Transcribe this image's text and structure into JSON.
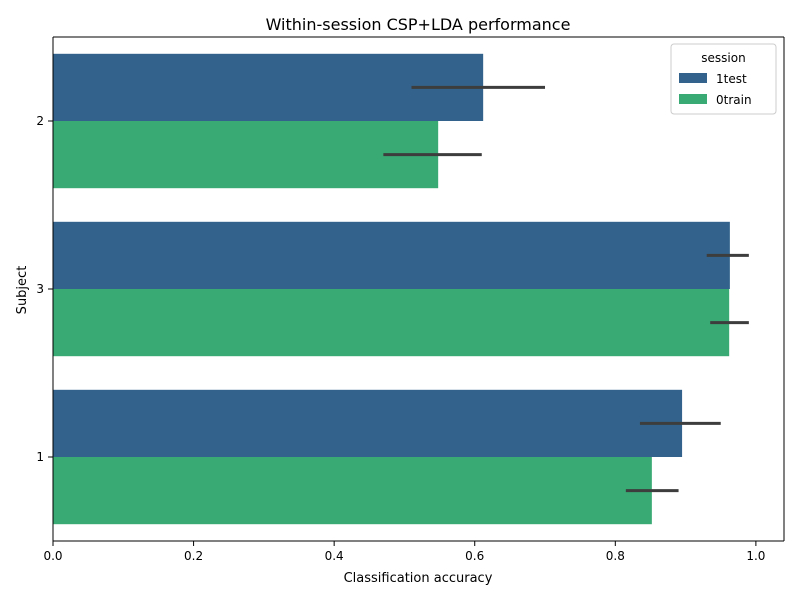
{
  "chart_data": {
    "type": "bar",
    "orientation": "horizontal",
    "title": "Within-session CSP+LDA performance",
    "xlabel": "Classification accuracy",
    "ylabel": "Subject",
    "xlim": [
      0.0,
      1.04
    ],
    "xticks": [
      "0.0",
      "0.2",
      "0.4",
      "0.6",
      "0.8",
      "1.0"
    ],
    "categories": [
      "2",
      "3",
      "1"
    ],
    "grid": false,
    "legend": {
      "title": "session",
      "placement": "top-right"
    },
    "series": [
      {
        "name": "1test",
        "color": "#33638d",
        "values": [
          0.612,
          0.963,
          0.895
        ],
        "ci": [
          [
            0.51,
            0.7
          ],
          [
            0.93,
            0.99
          ],
          [
            0.835,
            0.95
          ]
        ]
      },
      {
        "name": "0train",
        "color": "#3aaa74",
        "values": [
          0.548,
          0.962,
          0.852
        ],
        "ci": [
          [
            0.47,
            0.61
          ],
          [
            0.935,
            0.99
          ],
          [
            0.815,
            0.89
          ]
        ]
      }
    ]
  }
}
